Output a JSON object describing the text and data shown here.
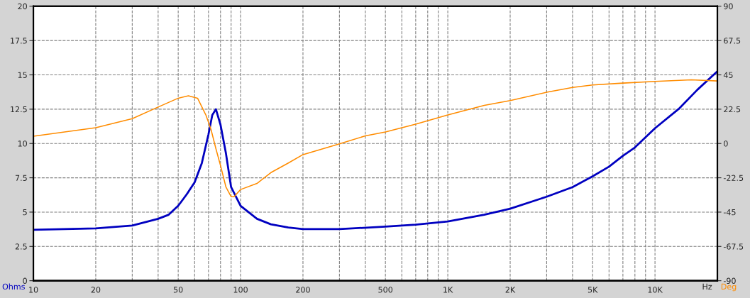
{
  "chart_data": {
    "type": "line",
    "xlabel": "Hz",
    "ylabel": "Ohms",
    "y2label": "Deg",
    "log": "x",
    "grid": true,
    "line_style": "solid",
    "marker": "none",
    "xlim": [
      10,
      20000
    ],
    "ylim": [
      0,
      20
    ],
    "y2lim": [
      -90,
      90
    ],
    "xticks": [
      10,
      20,
      {
        "value": 30,
        "label": null
      },
      {
        "value": 40,
        "label": null
      },
      50,
      {
        "value": 60,
        "label": null
      },
      {
        "value": 70,
        "label": null
      },
      {
        "value": 80,
        "label": null
      },
      {
        "value": 90,
        "label": null
      },
      100,
      200,
      {
        "value": 300,
        "label": null
      },
      {
        "value": 400,
        "label": null
      },
      500,
      {
        "value": 600,
        "label": null
      },
      {
        "value": 700,
        "label": null
      },
      {
        "value": 800,
        "label": null
      },
      {
        "value": 900,
        "label": null
      },
      {
        "value": 1000,
        "label": "1K"
      },
      {
        "value": 2000,
        "label": "2K"
      },
      {
        "value": 3000,
        "label": null
      },
      {
        "value": 4000,
        "label": null
      },
      {
        "value": 5000,
        "label": "5K"
      },
      {
        "value": 6000,
        "label": null
      },
      {
        "value": 7000,
        "label": null
      },
      {
        "value": 8000,
        "label": null
      },
      {
        "value": 9000,
        "label": null
      },
      {
        "value": 10000,
        "label": "10K"
      },
      {
        "value": 20000,
        "label": null
      }
    ],
    "yticks": [
      0,
      2.5,
      5,
      7.5,
      10,
      12.5,
      15,
      17.5,
      20
    ],
    "y2ticks": [
      -90,
      -67.5,
      -45,
      -22.5,
      0,
      22.5,
      45,
      67.5,
      90
    ],
    "series": [
      {
        "color": "#0000c0",
        "x": [
          10,
          20,
          30,
          40,
          45,
          50,
          55,
          60,
          65,
          70,
          73,
          76,
          80,
          85,
          90,
          100,
          120,
          140,
          170,
          200,
          300,
          500,
          700,
          1000,
          1500,
          2000,
          3000,
          4000,
          5000,
          6000,
          7000,
          8000,
          10000,
          13000,
          16000,
          20000
        ],
        "values": [
          3.71,
          3.81,
          4.02,
          4.51,
          4.81,
          5.46,
          6.3,
          7.17,
          8.57,
          10.67,
          12.07,
          12.5,
          11.37,
          9.27,
          6.82,
          5.46,
          4.51,
          4.11,
          3.88,
          3.76,
          3.76,
          3.94,
          4.08,
          4.32,
          4.81,
          5.25,
          6.12,
          6.82,
          7.61,
          8.31,
          9.1,
          9.71,
          11.11,
          12.51,
          13.91,
          15.26
        ]
      },
      {
        "color": "#ff8c00",
        "axis": "y2",
        "x": [
          10,
          20,
          30,
          40,
          50,
          56,
          62,
          68,
          72,
          76,
          80,
          85,
          90,
          93,
          100,
          120,
          140,
          170,
          200,
          300,
          400,
          500,
          700,
          1000,
          1500,
          2000,
          3000,
          4000,
          5000,
          7000,
          10000,
          15000,
          20000
        ],
        "values": [
          4.8,
          10.3,
          16.3,
          23.9,
          29.7,
          31.3,
          29.7,
          18.7,
          9.2,
          -3.4,
          -14.4,
          -28.6,
          -34.9,
          -34.9,
          -30.2,
          -26.2,
          -19.1,
          -12.8,
          -7.3,
          -0.2,
          5.0,
          7.6,
          12.7,
          18.7,
          25.0,
          28.1,
          33.6,
          36.8,
          38.4,
          39.6,
          40.7,
          41.8,
          41.0
        ]
      }
    ]
  }
}
